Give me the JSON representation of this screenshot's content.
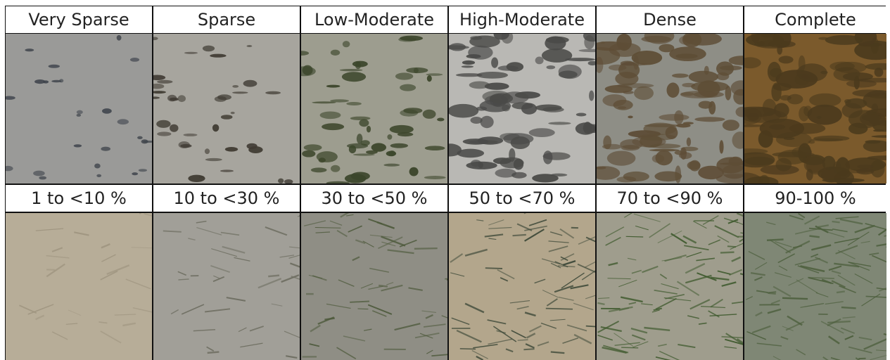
{
  "categories": [
    "Very Sparse",
    "Sparse",
    "Low-Moderate",
    "High-Moderate",
    "Dense",
    "Complete"
  ],
  "ranges": [
    "1 to <10 %",
    "10 to <30 %",
    "30 to <50 %",
    "50 to <70 %",
    "70 to <90 %",
    "90-100 %"
  ],
  "row1_colors": [
    {
      "bg": "#9a9a98",
      "mark": "#3e434b",
      "coverage": 0.06
    },
    {
      "bg": "#a7a59e",
      "mark": "#403b33",
      "coverage": 0.2
    },
    {
      "bg": "#9d9d8f",
      "mark": "#3b452a",
      "coverage": 0.4
    },
    {
      "bg": "#b9b8b4",
      "mark": "#4a4a48",
      "coverage": 0.6
    },
    {
      "bg": "#8e8e86",
      "mark": "#5e4d36",
      "coverage": 0.8
    },
    {
      "bg": "#7b5a2c",
      "mark": "#4b3a1d",
      "coverage": 0.95
    }
  ],
  "row2_colors": [
    {
      "bg": "#b7ad98",
      "mark": "#9f9580",
      "coverage": 0.06
    },
    {
      "bg": "#a19f98",
      "mark": "#6e6e61",
      "coverage": 0.2
    },
    {
      "bg": "#8f8e85",
      "mark": "#4e5a3c",
      "coverage": 0.4
    },
    {
      "bg": "#b3a68c",
      "mark": "#3f4a3a",
      "coverage": 0.6
    },
    {
      "bg": "#9f9d8d",
      "mark": "#3f5a2e",
      "coverage": 0.8
    },
    {
      "bg": "#7f8775",
      "mark": "#4d5f3d",
      "coverage": 0.95
    }
  ]
}
